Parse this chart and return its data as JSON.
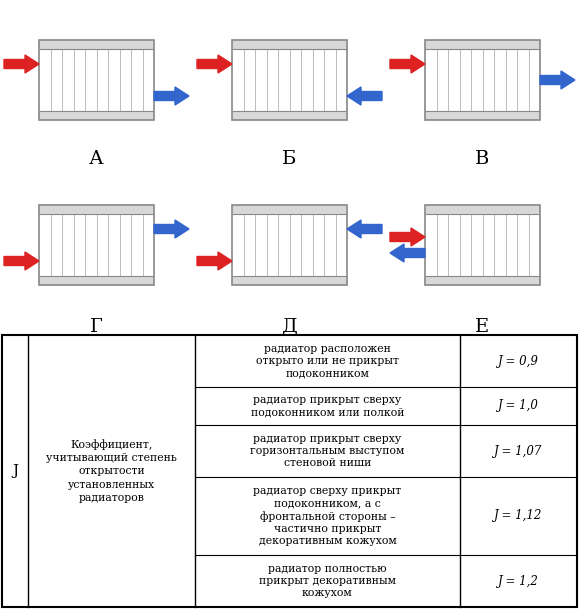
{
  "background_color": "#ffffff",
  "col_j_label": "J",
  "col2_label": "Коэффициент,\nучитывающий степень\nоткрытости\nустановленных\nрадиаторов",
  "rows": [
    {
      "description": "радиатор расположен\nоткрыто или не прикрыт\nподоконником",
      "value": "J = 0,9"
    },
    {
      "description": "радиатор прикрыт сверху\nподоконником или полкой",
      "value": "J = 1,0"
    },
    {
      "description": "радиатор прикрыт сверху\nгоризонтальным выступом\nстеновой ниши",
      "value": "J = 1,07"
    },
    {
      "description": "радиатор сверху прикрыт\nподоконником, а с\nфронтальной стороны –\nчастично прикрыт\nдекоративным кожухом",
      "value": "J = 1,12"
    },
    {
      "description": "радиатор полностью\nприкрыт декоративным\nкожухом",
      "value": "J = 1,2"
    }
  ],
  "scheme_labels": [
    "А",
    "Б",
    "В",
    "Г",
    "Д",
    "Е"
  ],
  "arrow_red": "#dd2222",
  "arrow_blue": "#3366cc",
  "radiator_bg": "#f8f8f8",
  "radiator_section_line": "#cccccc",
  "radiator_cap": "#e0e0e0",
  "radiator_border": "#999999"
}
